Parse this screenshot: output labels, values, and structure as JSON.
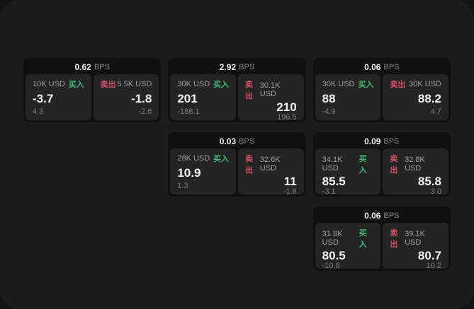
{
  "labels": {
    "buy": "买入",
    "sell": "卖出",
    "bps_unit": "BPS"
  },
  "colors": {
    "buy": "#41b871",
    "sell": "#d05365",
    "panel_bg": "#1b1c1b",
    "card_bg": "#101010",
    "tile_bg": "#242424"
  },
  "cards": [
    {
      "row": 1,
      "col": 1,
      "bps": "0.62",
      "buy": {
        "size": "10K USD",
        "value": "-3.7",
        "delta": "4.3"
      },
      "sell": {
        "size": "5.5K USD",
        "value": "-1.8",
        "delta": "-2.6"
      }
    },
    {
      "row": 1,
      "col": 2,
      "bps": "2.92",
      "buy": {
        "size": "30K USD",
        "value": "201",
        "delta": "-188.1"
      },
      "sell": {
        "size": "30.1K USD",
        "value": "210",
        "delta": "196.5"
      }
    },
    {
      "row": 1,
      "col": 3,
      "bps": "0.06",
      "buy": {
        "size": "30K USD",
        "value": "88",
        "delta": "-4.9"
      },
      "sell": {
        "size": "30K USD",
        "value": "88.2",
        "delta": "4.7"
      }
    },
    {
      "row": 2,
      "col": 2,
      "bps": "0.03",
      "buy": {
        "size": "28K USD",
        "value": "10.9",
        "delta": "1.3"
      },
      "sell": {
        "size": "32.6K USD",
        "value": "11",
        "delta": "-1.8"
      }
    },
    {
      "row": 2,
      "col": 3,
      "bps": "0.09",
      "buy": {
        "size": "34.1K USD",
        "value": "85.5",
        "delta": "-3.1"
      },
      "sell": {
        "size": "32.8K USD",
        "value": "85.8",
        "delta": "3.0"
      }
    },
    {
      "row": 3,
      "col": 3,
      "bps": "0.06",
      "buy": {
        "size": "31.8K USD",
        "value": "80.5",
        "delta": "-10.8"
      },
      "sell": {
        "size": "39.1K USD",
        "value": "80.7",
        "delta": "10.2"
      }
    }
  ]
}
